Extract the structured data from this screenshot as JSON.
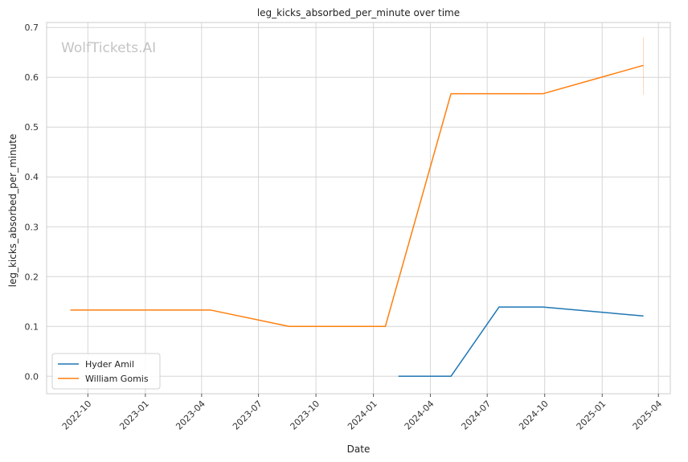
{
  "chart_data": {
    "type": "line",
    "title": "leg_kicks_absorbed_per_minute over time",
    "xlabel": "Date",
    "ylabel": "leg_kicks_absorbed_per_minute",
    "x_ticks": [
      "2022-10",
      "2023-01",
      "2023-04",
      "2023-07",
      "2023-10",
      "2024-01",
      "2024-04",
      "2024-07",
      "2024-10",
      "2025-01",
      "2025-04"
    ],
    "y_ticks": [
      "0.0",
      "0.1",
      "0.2",
      "0.3",
      "0.4",
      "0.5",
      "0.6",
      "0.7"
    ],
    "xlim": [
      "2022-07-27",
      "2025-04-20"
    ],
    "ylim": [
      -0.035,
      0.71
    ],
    "grid": true,
    "legend_position": "lower-left",
    "watermark": "WolfTickets.AI",
    "series": [
      {
        "name": "Hyder Amil",
        "color": "#1f77b4",
        "points": [
          {
            "x": "2024-02-10",
            "y": 0.0
          },
          {
            "x": "2024-05-04",
            "y": 0.0
          },
          {
            "x": "2024-07-20",
            "y": 0.139
          },
          {
            "x": "2024-09-28",
            "y": 0.139
          },
          {
            "x": "2025-03-08",
            "y": 0.121
          }
        ]
      },
      {
        "name": "William Gomis",
        "color": "#ff7f0e",
        "points": [
          {
            "x": "2022-09-03",
            "y": 0.133
          },
          {
            "x": "2023-04-15",
            "y": 0.133
          },
          {
            "x": "2023-08-19",
            "y": 0.1
          },
          {
            "x": "2024-01-20",
            "y": 0.1
          },
          {
            "x": "2024-05-04",
            "y": 0.567
          },
          {
            "x": "2024-09-28",
            "y": 0.567
          },
          {
            "x": "2025-03-08",
            "y": 0.624
          }
        ],
        "error_bar": {
          "x": "2025-03-08",
          "low": 0.565,
          "high": 0.68
        }
      }
    ]
  }
}
